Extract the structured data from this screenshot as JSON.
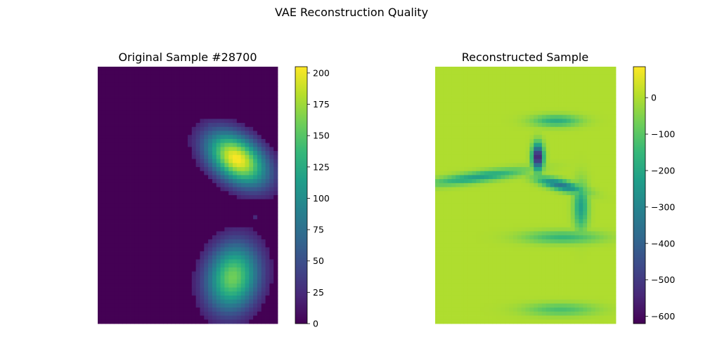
{
  "figure": {
    "suptitle": "VAE Reconstruction Quality"
  },
  "chart_data": [
    {
      "type": "heatmap",
      "title": "Original Sample #28700",
      "colormap": "viridis",
      "colorbar": {
        "vmin": 0,
        "vmax": 205,
        "ticks": [
          0,
          25,
          50,
          75,
          100,
          125,
          150,
          175,
          200
        ]
      },
      "axes_visible": false,
      "grid_cols": 44,
      "grid_rows": 64,
      "blobs": [
        {
          "cx": 33.5,
          "cy": 22.5,
          "rx": 6.0,
          "ry": 3.8,
          "angle": 38,
          "peak": 205
        },
        {
          "cx": 29.5,
          "cy": 21.0,
          "rx": 3.0,
          "ry": 2.5,
          "angle": 20,
          "peak": 75
        },
        {
          "cx": 32.5,
          "cy": 52.0,
          "rx": 4.6,
          "ry": 6.2,
          "angle": 12,
          "peak": 160
        }
      ],
      "specks": [
        {
          "col": 27,
          "row": 14,
          "value": 40
        },
        {
          "col": 38,
          "row": 37,
          "value": 25
        }
      ],
      "background_value": 0
    },
    {
      "type": "heatmap",
      "title": "Reconstructed Sample",
      "colormap": "viridis",
      "colorbar": {
        "vmin": -620,
        "vmax": 85,
        "ticks": [
          0,
          -100,
          -200,
          -300,
          -400,
          -500,
          -600
        ]
      },
      "axes_visible": false,
      "grid_cols": 44,
      "grid_rows": 64,
      "background_value": 0,
      "blobs": [
        {
          "cx": 33.5,
          "cy": 24.0,
          "rx": 6.5,
          "ry": 5.5,
          "angle": 20,
          "peak": 85
        },
        {
          "cx": 33.0,
          "cy": 51.0,
          "rx": 5.5,
          "ry": 8.0,
          "angle": 5,
          "peak": 85
        }
      ],
      "dark_regions": [
        {
          "cx": 24.5,
          "cy": 22.0,
          "rx": 0.9,
          "ry": 2.2,
          "angle": 0,
          "peak": -620
        },
        {
          "cx": 30.0,
          "cy": 29.0,
          "rx": 4.0,
          "ry": 0.9,
          "angle": 15,
          "peak": -340
        },
        {
          "cx": 35.0,
          "cy": 34.5,
          "rx": 1.2,
          "ry": 4.0,
          "angle": 0,
          "peak": -220
        },
        {
          "cx": 10.0,
          "cy": 27.0,
          "rx": 8.0,
          "ry": 0.9,
          "angle": -8,
          "peak": -220
        },
        {
          "cx": 29.0,
          "cy": 13.0,
          "rx": 4.0,
          "ry": 1.0,
          "angle": 0,
          "peak": -180
        },
        {
          "cx": 30.5,
          "cy": 42.0,
          "rx": 6.5,
          "ry": 1.1,
          "angle": 0,
          "peak": -150
        },
        {
          "cx": 30.0,
          "cy": 60.0,
          "rx": 6.0,
          "ry": 1.1,
          "angle": 0,
          "peak": -120
        }
      ],
      "texture_amplitude": 55
    }
  ]
}
